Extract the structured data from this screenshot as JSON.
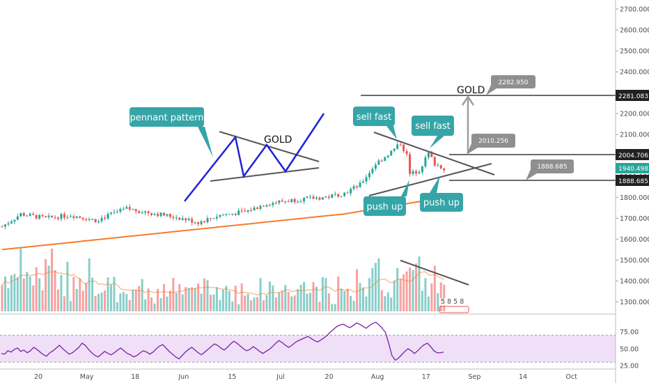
{
  "chart_data": {
    "type": "candlestick",
    "instrument": "GOLD",
    "price_axis": {
      "ticks": [
        "2700.000",
        "2600.000",
        "2500.000",
        "2400.000",
        "2300.000",
        "2200.000",
        "2100.000",
        "2000.000",
        "1900.000",
        "1800.000",
        "1700.000",
        "1600.000",
        "1500.000",
        "1400.000",
        "1300.000"
      ],
      "range": [
        1275,
        2720
      ]
    },
    "time_axis": {
      "labels": [
        "20",
        "May",
        "18",
        "Jun",
        "15",
        "Jul",
        "20",
        "Aug",
        "17",
        "Sep",
        "14",
        "Oct"
      ]
    },
    "rsi": {
      "ticks": [
        "75.00",
        "50.00",
        "25.00"
      ],
      "range": [
        20,
        100
      ],
      "band": [
        30,
        70
      ],
      "values": [
        43,
        42,
        47,
        45,
        49,
        51,
        46,
        48,
        44,
        47,
        52,
        49,
        45,
        41,
        39,
        44,
        47,
        51,
        55,
        50,
        46,
        42,
        44,
        48,
        52,
        58,
        55,
        49,
        44,
        40,
        38,
        42,
        46,
        43,
        41,
        44,
        48,
        51,
        47,
        43,
        41,
        38,
        40,
        44,
        47,
        45,
        42,
        45,
        50,
        54,
        56,
        51,
        46,
        42,
        38,
        35,
        40,
        45,
        49,
        52,
        48,
        44,
        41,
        45,
        49,
        53,
        57,
        55,
        51,
        48,
        52,
        57,
        61,
        58,
        54,
        50,
        47,
        49,
        53,
        50,
        46,
        43,
        46,
        49,
        53,
        58,
        62,
        59,
        55,
        52,
        55,
        59,
        62,
        64,
        66,
        68,
        65,
        62,
        60,
        63,
        66,
        70,
        75,
        79,
        83,
        85,
        86,
        83,
        81,
        84,
        88,
        86,
        83,
        80,
        84,
        87,
        89,
        85,
        80,
        74,
        58,
        40,
        33,
        36,
        41,
        46,
        50,
        47,
        43,
        47,
        52,
        56,
        58,
        53,
        47,
        44,
        44,
        45
      ]
    },
    "price_labels": [
      "2281.083",
      "2004.706",
      "1940.498",
      "1888.685"
    ],
    "volume_counter": "5 8 5 8",
    "annotations": {
      "gold_left": "GOLD",
      "gold_right": "GOLD",
      "pennant": "pennant pattern",
      "sell_fast_1": "sell fast",
      "sell_fast_2": "sell fast",
      "push_up_1": "push up",
      "push_up_2": "push up",
      "target_1": "2282.950",
      "target_2": "2010.256",
      "target_3": "1888.685"
    },
    "colors": {
      "up": "#26a69a",
      "down": "#ef5350",
      "ma": "#f57c2c",
      "rsi": "#7b1fa2",
      "rsi_band": "#e9d6f5",
      "callout": "#35a5a8",
      "tag_gray": "#8f8f8f",
      "label_dark": "#212121",
      "label_green": "#26a69a",
      "pennant_line": "#1f22d6",
      "trend_line": "#555555"
    }
  }
}
